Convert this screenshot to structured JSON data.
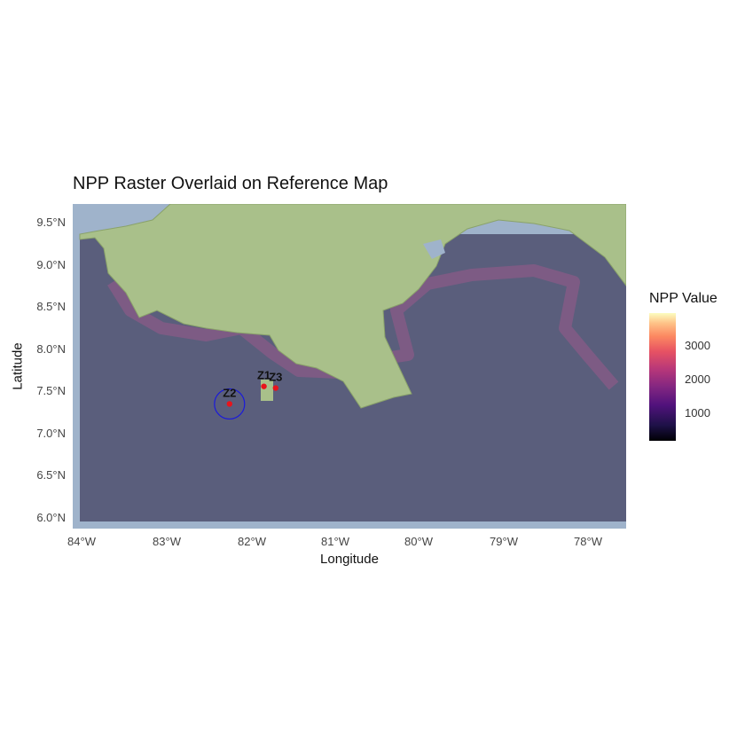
{
  "map": {
    "title": "NPP Raster Overlaid on Reference Map",
    "x_axis_title": "Longitude",
    "y_axis_title": "Latitude",
    "x_ticks": [
      {
        "value": -84,
        "label": "84°W"
      },
      {
        "value": -83,
        "label": "83°W"
      },
      {
        "value": -82,
        "label": "82°W"
      },
      {
        "value": -81,
        "label": "81°W"
      },
      {
        "value": -80,
        "label": "80°W"
      },
      {
        "value": -79,
        "label": "79°W"
      },
      {
        "value": -78,
        "label": "78°W"
      }
    ],
    "y_ticks": [
      {
        "value": 9.5,
        "label": "9.5°N"
      },
      {
        "value": 9.0,
        "label": "9.0°N"
      },
      {
        "value": 8.5,
        "label": "8.5°N"
      },
      {
        "value": 8.0,
        "label": "8.0°N"
      },
      {
        "value": 7.5,
        "label": "7.5°N"
      },
      {
        "value": 7.0,
        "label": "7.0°N"
      },
      {
        "value": 6.5,
        "label": "6.5°N"
      },
      {
        "value": 6.0,
        "label": "6.0°N"
      }
    ],
    "extent": {
      "lon": [
        -84.0,
        -77.4
      ],
      "lat": [
        5.95,
        9.83
      ]
    },
    "colors": {
      "ocean": "#5a5e7c",
      "land": "#a9c08a",
      "frame": "#9fb3cb",
      "site": "#e8141c",
      "buffer": "#1a1adb"
    }
  },
  "legend": {
    "title": "NPP Value",
    "ticks": [
      {
        "value": 3000,
        "label": "3000"
      },
      {
        "value": 2000,
        "label": "2000"
      },
      {
        "value": 1000,
        "label": "1000"
      }
    ],
    "range": [
      200,
      4000
    ],
    "palette": "magma"
  },
  "points": [
    {
      "label": "Z1",
      "lon": -81.72,
      "lat": 7.65
    },
    {
      "label": "Z2",
      "lon": -82.13,
      "lat": 7.44
    },
    {
      "label": "Z3",
      "lon": -81.58,
      "lat": 7.63
    }
  ]
}
